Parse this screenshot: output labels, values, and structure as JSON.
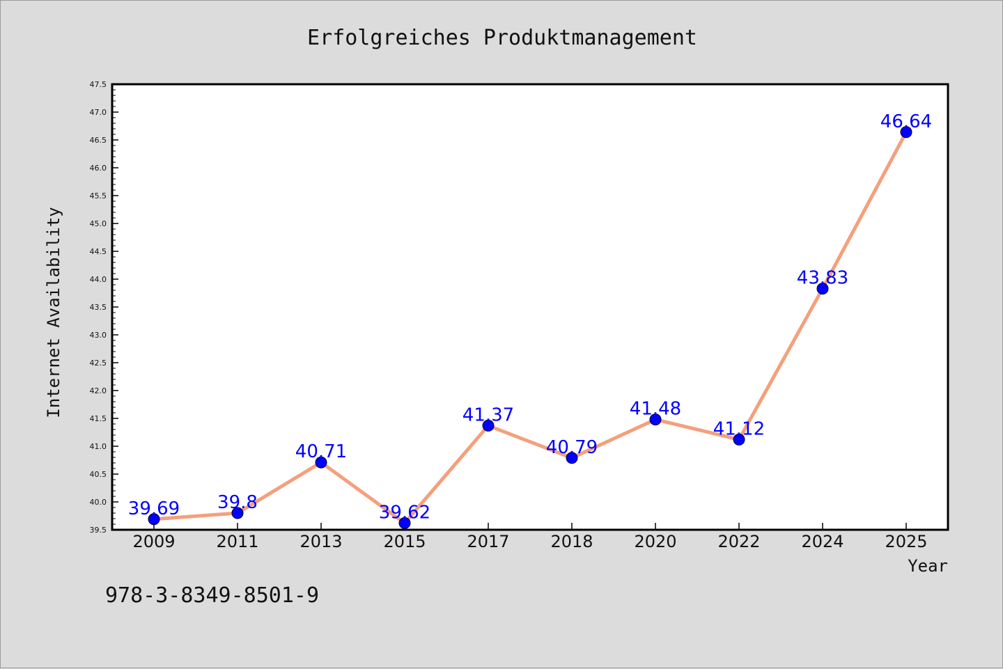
{
  "chart_data": {
    "type": "line",
    "title": "Erfolgreiches Produktmanagement",
    "xlabel": "Year",
    "ylabel": "Internet Availability",
    "categories": [
      "2009",
      "2011",
      "2013",
      "2015",
      "2017",
      "2018",
      "2020",
      "2022",
      "2024",
      "2025"
    ],
    "series": [
      {
        "values": [
          39.69,
          39.8,
          40.71,
          39.62,
          41.37,
          40.79,
          41.48,
          41.12,
          43.83,
          46.64
        ],
        "labels": [
          "39.69",
          "39.8",
          "40.71",
          "39.62",
          "41.37",
          "40.79",
          "41.48",
          "41.12",
          "43.83",
          "46.64"
        ],
        "line_color": "#f4a07c",
        "marker_color": "#0000ff"
      }
    ],
    "ylim": [
      39.5,
      47.5
    ],
    "yticks": [
      "39.5",
      "40.0",
      "40.5",
      "41.0",
      "41.5",
      "42.0",
      "42.5",
      "43.0",
      "43.5",
      "44.0",
      "44.5",
      "45.0",
      "45.5",
      "46.0",
      "46.5",
      "47.0",
      "47.5"
    ],
    "ytick_step": 0.5,
    "yminor_per_major": 5,
    "grid": false,
    "legend": "none",
    "label_color": "#0000ff"
  },
  "footer": {
    "isbn": "978-3-8349-8501-9"
  },
  "colors": {
    "background": "#dcdcdc",
    "plot_background": "#ffffff",
    "axis": "#000000"
  }
}
